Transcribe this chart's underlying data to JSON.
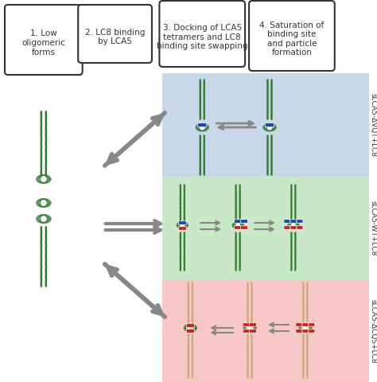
{
  "fig_width": 4.74,
  "fig_height": 4.8,
  "dpi": 100,
  "bg_color": "#ffffff",
  "box1_text": "1. Low\noligomeric\nforms",
  "box2_text": "2. LC8 binding\nby LCA5",
  "box3_text": "3. Docking of LCA5\ntetramers and LC8\nbinding site swapping",
  "box4_text": "4. Saturation of\nbinding site\nand particle\nformation",
  "label1": "sLCA5-ΔVQT+LC8",
  "label2": "sLCA5-WT+LC8",
  "label3": "sLCA5-ΔCQS+LC8",
  "blue_panel_color": "#c8d8e8",
  "green_panel_color": "#c8e8c8",
  "pink_panel_color": "#f8c8c8",
  "green_fiber": "#2d7a2d",
  "tan_fiber": "#c8a878",
  "blue_lc8": "#2244aa",
  "red_lc8": "#cc2222",
  "arrow_color": "#888888",
  "box_edge_color": "#333333",
  "text_color": "#333333",
  "font_size_box": 7.5,
  "font_size_label": 6.5
}
